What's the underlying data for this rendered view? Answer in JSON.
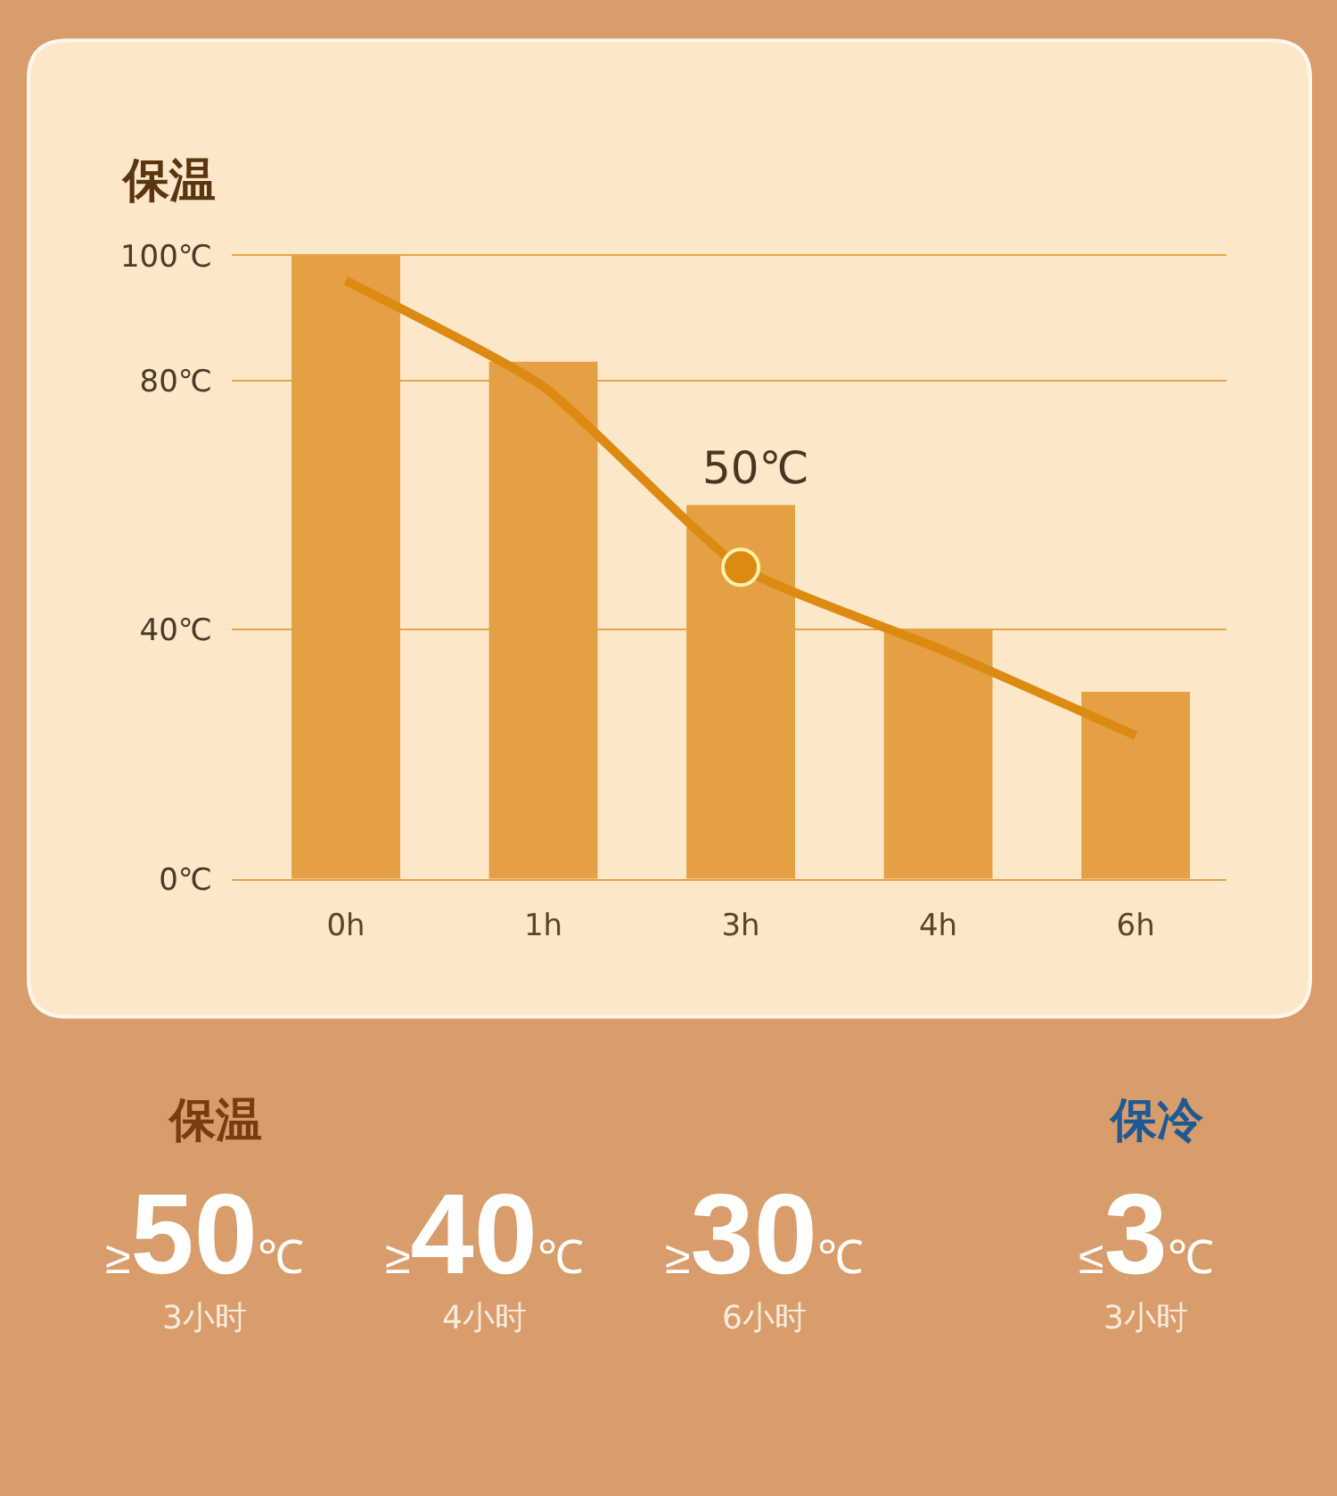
{
  "chart_data": [
    {
      "type": "bar",
      "title": "保温",
      "categories": [
        "0h",
        "1h",
        "3h",
        "4h",
        "6h"
      ],
      "series": [
        {
          "type": "bar",
          "color": "#e4a042",
          "values": [
            100,
            83,
            60,
            40,
            30
          ]
        },
        {
          "type": "line",
          "color": "#dc8a12",
          "values": [
            96,
            79,
            50,
            37,
            23
          ]
        },
        {
          "type": "scatter",
          "color": "#dc8a12",
          "marker": "circle",
          "values": [
            null,
            null,
            50,
            null,
            null
          ],
          "value_labels": [
            null,
            null,
            "50℃",
            null,
            null
          ]
        }
      ],
      "ylim": [
        0,
        100
      ],
      "yticks": [
        {
          "value": 0,
          "label": "0℃"
        },
        {
          "value": 40,
          "label": "40℃"
        },
        {
          "value": 80,
          "label": "80℃"
        },
        {
          "value": 100,
          "label": "100℃"
        }
      ],
      "grid": "y"
    },
    {
      "type": "other",
      "title": "保温",
      "annotations": [
        "≥50℃",
        "3小时",
        "≥40℃",
        "4小时",
        "≥30℃",
        "6小时"
      ]
    },
    {
      "type": "other",
      "title": "保冷",
      "annotations": [
        "≤3℃",
        "3小时"
      ]
    }
  ]
}
